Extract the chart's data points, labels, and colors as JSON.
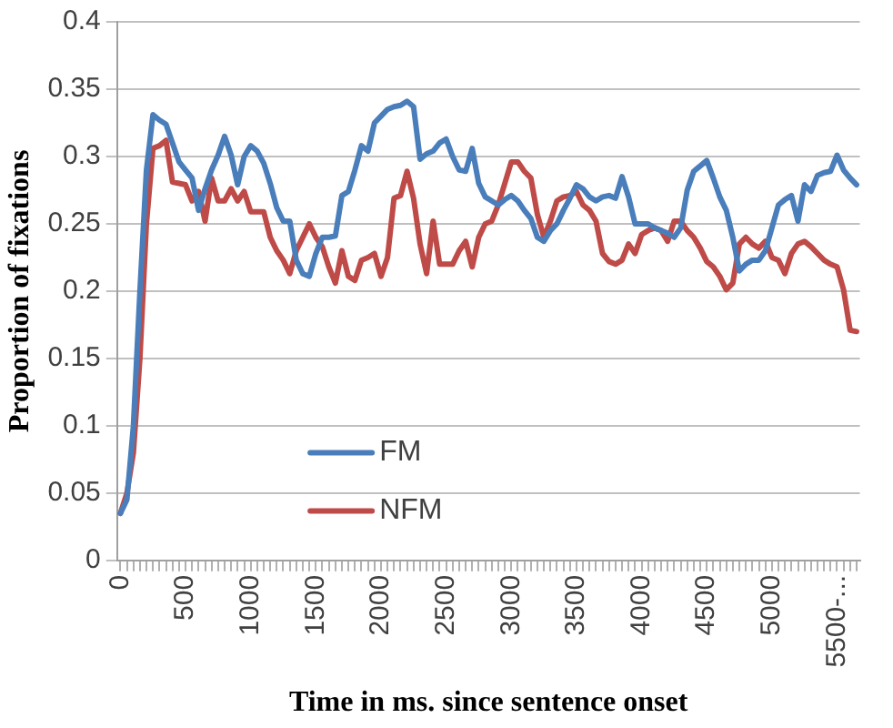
{
  "chart_data": {
    "type": "line",
    "xlabel": "Time in ms. since sentence onset",
    "ylabel": "Proportion of fixations",
    "categories": [
      "0",
      null,
      null,
      null,
      null,
      null,
      null,
      null,
      null,
      null,
      "500",
      null,
      null,
      null,
      null,
      null,
      null,
      null,
      null,
      null,
      "1000",
      null,
      null,
      null,
      null,
      null,
      null,
      null,
      null,
      null,
      "1500",
      null,
      null,
      null,
      null,
      null,
      null,
      null,
      null,
      null,
      "2000",
      null,
      null,
      null,
      null,
      null,
      null,
      null,
      null,
      null,
      "2500",
      null,
      null,
      null,
      null,
      null,
      null,
      null,
      null,
      null,
      "3000",
      null,
      null,
      null,
      null,
      null,
      null,
      null,
      null,
      null,
      "3500",
      null,
      null,
      null,
      null,
      null,
      null,
      null,
      null,
      null,
      "4000",
      null,
      null,
      null,
      null,
      null,
      null,
      null,
      null,
      null,
      "4500",
      null,
      null,
      null,
      null,
      null,
      null,
      null,
      null,
      null,
      "5000",
      null,
      null,
      null,
      null,
      null,
      null,
      null,
      null,
      null,
      "5500-...",
      null,
      null,
      null
    ],
    "series": [
      {
        "name": "FM",
        "color": "#4a7ebb",
        "values": [
          0.035,
          0.045,
          0.1,
          0.2,
          0.29,
          0.331,
          0.327,
          0.324,
          0.31,
          0.296,
          0.29,
          0.284,
          0.26,
          0.276,
          0.29,
          0.301,
          0.315,
          0.301,
          0.279,
          0.3,
          0.308,
          0.304,
          0.295,
          0.28,
          0.262,
          0.252,
          0.252,
          0.223,
          0.213,
          0.211,
          0.228,
          0.24,
          0.24,
          0.241,
          0.271,
          0.274,
          0.29,
          0.308,
          0.304,
          0.325,
          0.33,
          0.335,
          0.337,
          0.338,
          0.341,
          0.337,
          0.298,
          0.302,
          0.304,
          0.31,
          0.313,
          0.3,
          0.29,
          0.289,
          0.306,
          0.28,
          0.27,
          0.267,
          0.264,
          0.268,
          0.271,
          0.267,
          0.26,
          0.254,
          0.24,
          0.237,
          0.245,
          0.25,
          0.26,
          0.269,
          0.279,
          0.276,
          0.27,
          0.267,
          0.27,
          0.271,
          0.269,
          0.285,
          0.27,
          0.25,
          0.25,
          0.25,
          0.247,
          0.245,
          0.243,
          0.24,
          0.247,
          0.275,
          0.289,
          0.293,
          0.297,
          0.284,
          0.27,
          0.26,
          0.24,
          0.215,
          0.22,
          0.223,
          0.223,
          0.23,
          0.247,
          0.264,
          0.268,
          0.271,
          0.252,
          0.279,
          0.274,
          0.286,
          0.288,
          0.289,
          0.301,
          0.29,
          0.284,
          0.279
        ]
      },
      {
        "name": "NFM",
        "color": "#be4b48",
        "values": [
          0.035,
          0.05,
          0.08,
          0.15,
          0.25,
          0.306,
          0.308,
          0.312,
          0.281,
          0.28,
          0.279,
          0.267,
          0.274,
          0.252,
          0.284,
          0.267,
          0.267,
          0.276,
          0.267,
          0.274,
          0.259,
          0.259,
          0.259,
          0.24,
          0.23,
          0.223,
          0.213,
          0.23,
          0.24,
          0.25,
          0.24,
          0.233,
          0.218,
          0.206,
          0.23,
          0.211,
          0.208,
          0.223,
          0.225,
          0.228,
          0.211,
          0.225,
          0.269,
          0.271,
          0.289,
          0.269,
          0.235,
          0.213,
          0.252,
          0.22,
          0.22,
          0.22,
          0.23,
          0.237,
          0.218,
          0.24,
          0.25,
          0.252,
          0.264,
          0.28,
          0.296,
          0.296,
          0.289,
          0.284,
          0.257,
          0.24,
          0.252,
          0.267,
          0.27,
          0.271,
          0.274,
          0.264,
          0.26,
          0.252,
          0.228,
          0.222,
          0.22,
          0.223,
          0.235,
          0.228,
          0.242,
          0.245,
          0.247,
          0.245,
          0.237,
          0.252,
          0.252,
          0.245,
          0.24,
          0.232,
          0.222,
          0.218,
          0.211,
          0.201,
          0.206,
          0.235,
          0.24,
          0.235,
          0.232,
          0.237,
          0.225,
          0.223,
          0.213,
          0.228,
          0.235,
          0.237,
          0.233,
          0.228,
          0.223,
          0.22,
          0.218,
          0.201,
          0.171,
          0.17
        ]
      }
    ],
    "ylim": [
      0,
      0.4
    ],
    "yticks": [
      0,
      0.05,
      0.1,
      0.15,
      0.2,
      0.25,
      0.3,
      0.35,
      0.4
    ],
    "grid": "y",
    "legend": "bottom",
    "marker": "none"
  }
}
